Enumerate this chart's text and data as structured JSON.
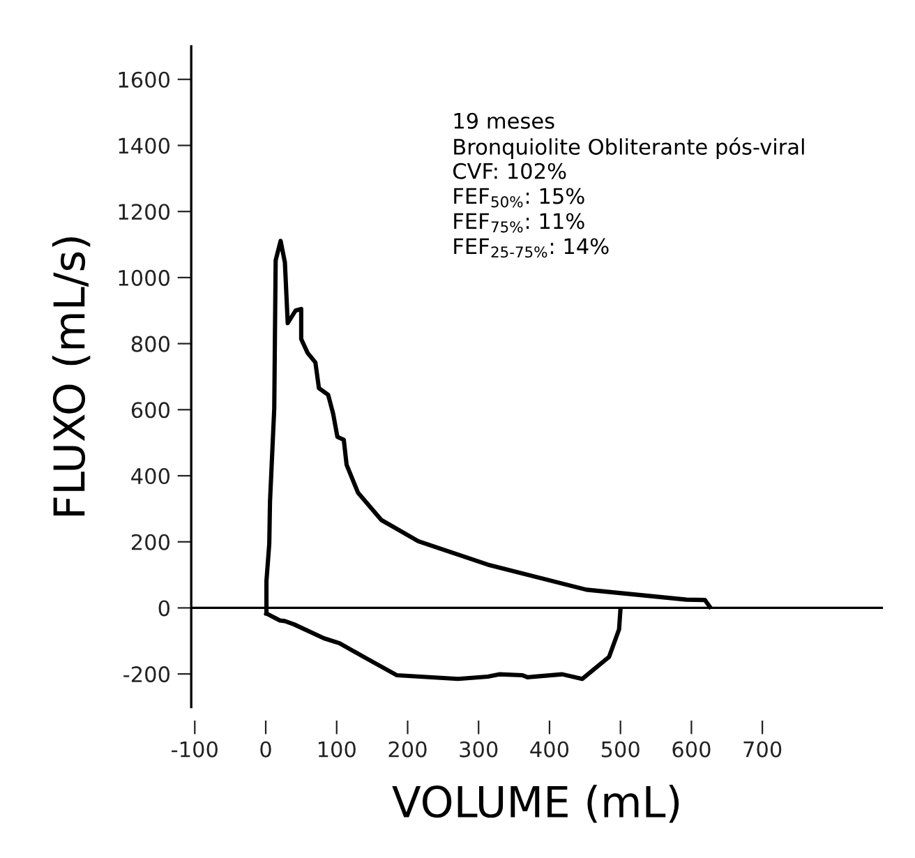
{
  "chart_data": {
    "type": "line",
    "xlabel": "VOLUME (mL)",
    "ylabel": "FLUXO (mL/s)",
    "xlim": [
      -105,
      870
    ],
    "ylim": [
      -300,
      1700
    ],
    "xticks": [
      -100,
      0,
      100,
      200,
      300,
      400,
      500,
      600,
      700
    ],
    "yticks": [
      -200,
      0,
      200,
      400,
      600,
      800,
      1000,
      1200,
      1400,
      1600
    ],
    "grid": false,
    "legend": false,
    "marker": "none",
    "line_style": "solid",
    "ref_lines": [
      {
        "axis": "y",
        "value": 0,
        "color": "#000000"
      }
    ],
    "annotations": [
      "19 meses",
      "Bronquiolite Obliterante pós-viral",
      "CVF: 102%",
      "FEF$_{50%}$: 15%",
      "FEF$_{75%}$: 11%",
      "FEF$_{25-75%}$: 14%"
    ],
    "series": [
      {
        "color": "#000000",
        "x": [
          1,
          1,
          5,
          6,
          12,
          13,
          14,
          21,
          27,
          31,
          42,
          50,
          50,
          59,
          70,
          75,
          88,
          95,
          101,
          110,
          114,
          130,
          163,
          215,
          313,
          452,
          593,
          619,
          626
        ],
        "values": [
          -17,
          81,
          194,
          320,
          603,
          827,
          1052,
          1111,
          1046,
          862,
          900,
          905,
          814,
          772,
          743,
          665,
          645,
          588,
          518,
          509,
          433,
          349,
          266,
          202,
          131,
          55,
          25,
          24,
          3
        ]
      },
      {
        "color": "#000000",
        "x": [
          1,
          20,
          27,
          40,
          82,
          104,
          138,
          185,
          271,
          313,
          329,
          362,
          369,
          418,
          446,
          484,
          498,
          500
        ],
        "values": [
          -17,
          -38,
          -40,
          -50,
          -92,
          -107,
          -148,
          -204,
          -215,
          -208,
          -201,
          -204,
          -210,
          -201,
          -215,
          -148,
          -65,
          -4
        ]
      }
    ]
  }
}
